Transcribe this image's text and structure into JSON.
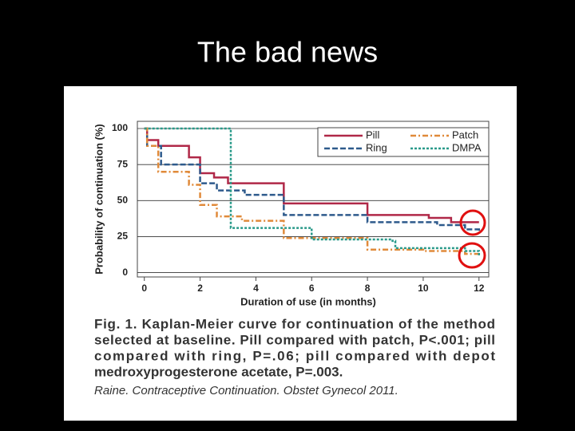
{
  "slide_title": "The bad news",
  "chart_data": {
    "type": "step",
    "xlabel": "Duration of use (in months)",
    "ylabel": "Probability of continuation (%)",
    "xlim": [
      -0.25,
      12.35
    ],
    "ylim": [
      -3,
      105
    ],
    "xticks": [
      0,
      2,
      4,
      6,
      8,
      10,
      12
    ],
    "yticks": [
      0,
      25,
      50,
      75,
      100
    ],
    "grid": true,
    "legend": "upper right",
    "series": [
      {
        "name": "Pill",
        "color": "#b02848",
        "linestyle": "solid",
        "x": [
          0,
          0.1,
          0.5,
          1.6,
          2,
          2.5,
          3,
          5,
          8,
          10.2,
          11,
          12
        ],
        "values": [
          100,
          92,
          88,
          80,
          69,
          66,
          62,
          48,
          40,
          38,
          35,
          35
        ]
      },
      {
        "name": "Ring",
        "color": "#2e5a8c",
        "linestyle": "dashed",
        "x": [
          0,
          0.1,
          0.6,
          2,
          2.6,
          3.6,
          5,
          8,
          10.5,
          11.5,
          12
        ],
        "values": [
          100,
          88,
          75,
          62,
          57,
          54,
          40,
          35,
          33,
          30,
          29
        ]
      },
      {
        "name": "Patch",
        "color": "#e08a3a",
        "linestyle": "dashdot",
        "x": [
          0,
          0.1,
          0.5,
          1.6,
          2,
          2.6,
          3.5,
          5,
          8,
          10,
          11.5,
          12
        ],
        "values": [
          100,
          88,
          70,
          61,
          47,
          39,
          36,
          24,
          16,
          15,
          13,
          11
        ]
      },
      {
        "name": "DMPA",
        "color": "#2a9a8a",
        "linestyle": "dotted",
        "x": [
          0,
          3,
          3.1,
          6,
          8.9,
          9,
          11.5,
          12
        ],
        "values": [
          100,
          100,
          31,
          23,
          22,
          17,
          15,
          12
        ]
      }
    ],
    "caption": [
      "Fig. 1. Kaplan-Meier curve for continuation of the method",
      "selected at baseline. Pill compared with patch, P<.001; pill",
      "compared with ring, P=.06; pill compared with depot",
      "medroxyprogesterone acetate, P=.003."
    ],
    "source": "Raine. Contraceptive Continuation. Obstet Gynecol 2011."
  }
}
